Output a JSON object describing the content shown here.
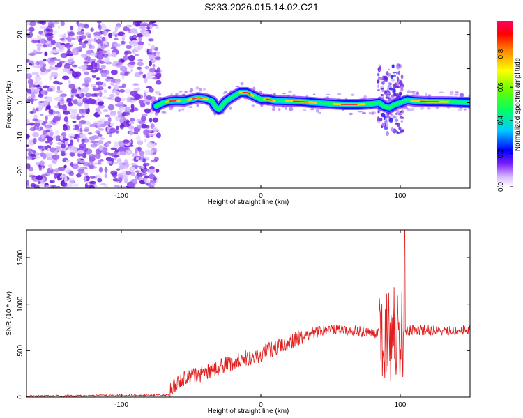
{
  "title": "S233.2026.015.14.02.C21",
  "colors": {
    "spectrogram_noise": "#9a5cf0",
    "snr_line": "#e02020"
  },
  "chart_data": [
    {
      "type": "heatmap",
      "name": "spectrogram",
      "xlabel": "Height of straight line (km)",
      "ylabel": "Frequency (Hz)",
      "xlim": [
        -168,
        150
      ],
      "ylim": [
        -25,
        24
      ],
      "xticks": [
        -100,
        0,
        100
      ],
      "yticks": [
        -20,
        -10,
        0,
        10,
        20
      ],
      "xtick_labels": [
        "-100",
        "0",
        "100"
      ],
      "ytick_labels": [
        "-20",
        "-10",
        "0",
        "10",
        "20"
      ],
      "noise_region": [
        -168,
        -75
      ],
      "ridge": {
        "x": [
          -75,
          -70,
          -65,
          -60,
          -55,
          -50,
          -45,
          -40,
          -35,
          -32,
          -30,
          -28,
          -25,
          -20,
          -15,
          -10,
          -5,
          0,
          5,
          10,
          20,
          30,
          40,
          50,
          60,
          70,
          80,
          85,
          88,
          92,
          96,
          100,
          105,
          110,
          120,
          130,
          140,
          148
        ],
        "y": [
          -1,
          0,
          0.5,
          0.6,
          0.5,
          1,
          1.5,
          1.2,
          0.5,
          -1.5,
          -2,
          -1,
          0.5,
          1.8,
          3,
          3,
          2,
          1,
          1,
          0.6,
          0.5,
          0.3,
          0,
          -0.3,
          -0.5,
          -0.5,
          -0.3,
          0,
          -1,
          -1.5,
          -0.5,
          0,
          0.8,
          0.5,
          0.3,
          0.3,
          0.2,
          0.1
        ]
      },
      "colorbar": {
        "label": "Normalized spectral amplitude",
        "ticks": [
          0.0,
          0.2,
          0.4,
          0.6,
          0.8
        ],
        "tick_labels": [
          "0.0",
          "0.2",
          "0.4",
          "0.6",
          "0.8"
        ],
        "range": [
          0,
          1
        ]
      }
    },
    {
      "type": "line",
      "name": "snr",
      "xlabel": "Height of straight line (km)",
      "ylabel": "SNR (10 * v/v)",
      "xlim": [
        -168,
        150
      ],
      "ylim": [
        0,
        1800
      ],
      "xticks": [
        -100,
        0,
        100
      ],
      "yticks": [
        0,
        500,
        1000,
        1500
      ],
      "xtick_labels": [
        "-100",
        "0",
        "100"
      ],
      "ytick_labels": [
        "0",
        "500",
        "1000",
        "1500"
      ],
      "trend": {
        "x": [
          -168,
          -120,
          -70,
          -66,
          -63,
          -55,
          -40,
          -25,
          -10,
          0,
          10,
          20,
          30,
          40,
          50,
          60,
          70,
          80,
          90,
          100,
          110,
          120,
          130,
          140,
          150
        ],
        "y": [
          10,
          15,
          20,
          25,
          130,
          190,
          260,
          350,
          420,
          460,
          530,
          580,
          650,
          700,
          720,
          720,
          710,
          690,
          700,
          710,
          720,
          720,
          710,
          720,
          730
        ]
      },
      "noise_amplitude": [
        {
          "from": -168,
          "to": -66,
          "amp": 10
        },
        {
          "from": -66,
          "to": 30,
          "amp": 90
        },
        {
          "from": 30,
          "to": 85,
          "amp": 60
        },
        {
          "from": 85,
          "to": 102,
          "amp": 550
        },
        {
          "from": 102,
          "to": 150,
          "amp": 55
        }
      ],
      "peak": {
        "x": 103,
        "y": 1800
      }
    }
  ]
}
